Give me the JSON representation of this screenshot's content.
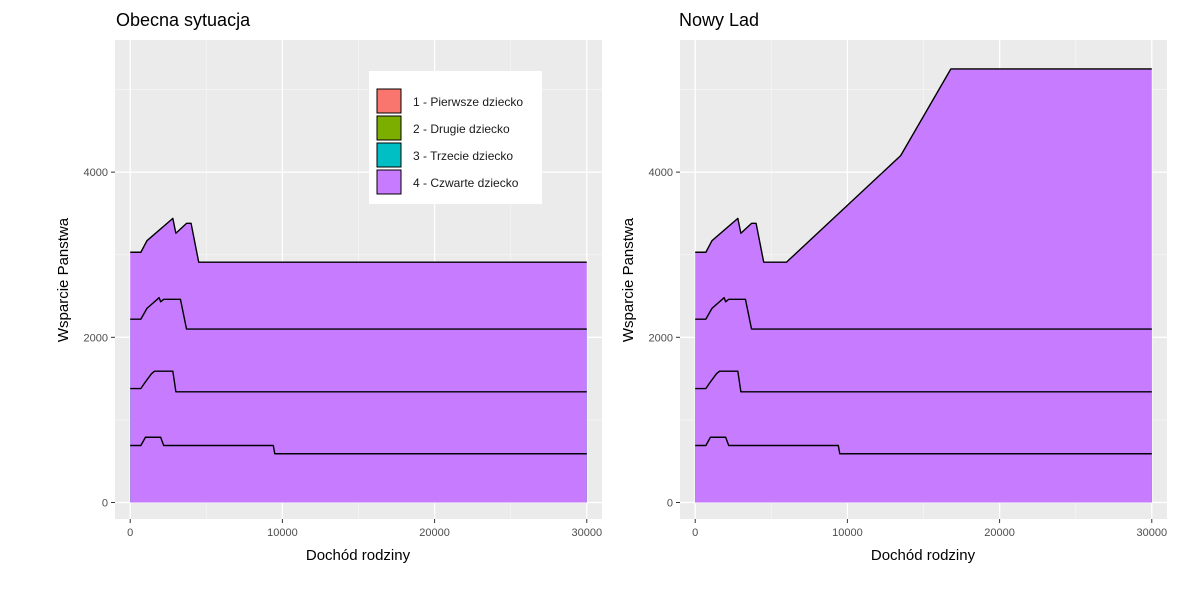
{
  "chart_data": [
    {
      "type": "area",
      "stacked": true,
      "title": "Obecna sytuacja",
      "xlabel": "Dochód rodziny",
      "ylabel": "Wsparcie Panstwa",
      "xlim": [
        -1000,
        31000
      ],
      "ylim": [
        -200,
        5600
      ],
      "x_ticks": [
        0,
        10000,
        20000,
        30000
      ],
      "x_tick_labels": [
        "0",
        "10000",
        "20000",
        "30000"
      ],
      "y_ticks": [
        0,
        2000,
        4000
      ],
      "y_tick_labels": [
        "0",
        "2000",
        "4000"
      ],
      "grid": true,
      "legend": {
        "placement": "top-right",
        "entries": [
          "1 - Pierwsze dziecko",
          "2 - Drugie dziecko",
          "3 - Trzecie dziecko",
          "4 - Czwarte dziecko"
        ]
      },
      "series": [
        {
          "name": "1 - Pierwsze dziecko",
          "color": "#f8766d",
          "points": [
            [
              0,
              690
            ],
            [
              700,
              690
            ],
            [
              1000,
              790
            ],
            [
              2000,
              790
            ],
            [
              2200,
              690
            ],
            [
              9400,
              690
            ],
            [
              9500,
              590
            ],
            [
              30000,
              590
            ]
          ]
        },
        {
          "name": "2 - Drugie dziecko",
          "color": "#7cae00",
          "points": [
            [
              0,
              1380
            ],
            [
              700,
              1380
            ],
            [
              1000,
              1460
            ],
            [
              1400,
              1560
            ],
            [
              1600,
              1590
            ],
            [
              2800,
              1590
            ],
            [
              3000,
              1340
            ],
            [
              30000,
              1340
            ]
          ]
        },
        {
          "name": "3 - Trzecie dziecko",
          "color": "#00bfc4",
          "points": [
            [
              0,
              2220
            ],
            [
              700,
              2220
            ],
            [
              1100,
              2350
            ],
            [
              1900,
              2480
            ],
            [
              2000,
              2430
            ],
            [
              2200,
              2460
            ],
            [
              3300,
              2460
            ],
            [
              3700,
              2100
            ],
            [
              30000,
              2100
            ]
          ]
        },
        {
          "name": "4 - Czwarte dziecko",
          "color": "#c77cff",
          "points": [
            [
              0,
              3030
            ],
            [
              700,
              3030
            ],
            [
              1100,
              3170
            ],
            [
              2800,
              3440
            ],
            [
              3000,
              3260
            ],
            [
              3700,
              3380
            ],
            [
              4000,
              3380
            ],
            [
              4500,
              2910
            ],
            [
              30000,
              2910
            ]
          ]
        }
      ]
    },
    {
      "type": "area",
      "stacked": true,
      "title": "Nowy Lad",
      "xlabel": "Dochód rodziny",
      "ylabel": "Wsparcie Panstwa",
      "xlim": [
        -1000,
        31000
      ],
      "ylim": [
        -200,
        5600
      ],
      "x_ticks": [
        0,
        10000,
        20000,
        30000
      ],
      "x_tick_labels": [
        "0",
        "10000",
        "20000",
        "30000"
      ],
      "y_ticks": [
        0,
        2000,
        4000
      ],
      "y_tick_labels": [
        "0",
        "2000",
        "4000"
      ],
      "grid": true,
      "series": [
        {
          "name": "1 - Pierwsze dziecko",
          "color": "#f8766d",
          "points": [
            [
              0,
              690
            ],
            [
              700,
              690
            ],
            [
              1000,
              790
            ],
            [
              2000,
              790
            ],
            [
              2200,
              690
            ],
            [
              9400,
              690
            ],
            [
              9500,
              590
            ],
            [
              30000,
              590
            ]
          ]
        },
        {
          "name": "2 - Drugie dziecko",
          "color": "#7cae00",
          "points": [
            [
              0,
              1380
            ],
            [
              700,
              1380
            ],
            [
              1000,
              1460
            ],
            [
              1400,
              1560
            ],
            [
              1600,
              1590
            ],
            [
              2800,
              1590
            ],
            [
              3000,
              1340
            ],
            [
              30000,
              1340
            ]
          ]
        },
        {
          "name": "3 - Trzecie dziecko",
          "color": "#00bfc4",
          "points": [
            [
              0,
              2220
            ],
            [
              700,
              2220
            ],
            [
              1100,
              2350
            ],
            [
              1900,
              2480
            ],
            [
              2000,
              2430
            ],
            [
              2200,
              2460
            ],
            [
              3300,
              2460
            ],
            [
              3700,
              2100
            ],
            [
              30000,
              2100
            ]
          ]
        },
        {
          "name": "4 - Czwarte dziecko",
          "color": "#c77cff",
          "points": [
            [
              0,
              3030
            ],
            [
              700,
              3030
            ],
            [
              1100,
              3170
            ],
            [
              2800,
              3440
            ],
            [
              3000,
              3260
            ],
            [
              3700,
              3380
            ],
            [
              4000,
              3380
            ],
            [
              4500,
              2910
            ],
            [
              6000,
              2910
            ],
            [
              13500,
              4200
            ],
            [
              16800,
              5250
            ],
            [
              30000,
              5250
            ]
          ]
        }
      ]
    }
  ]
}
